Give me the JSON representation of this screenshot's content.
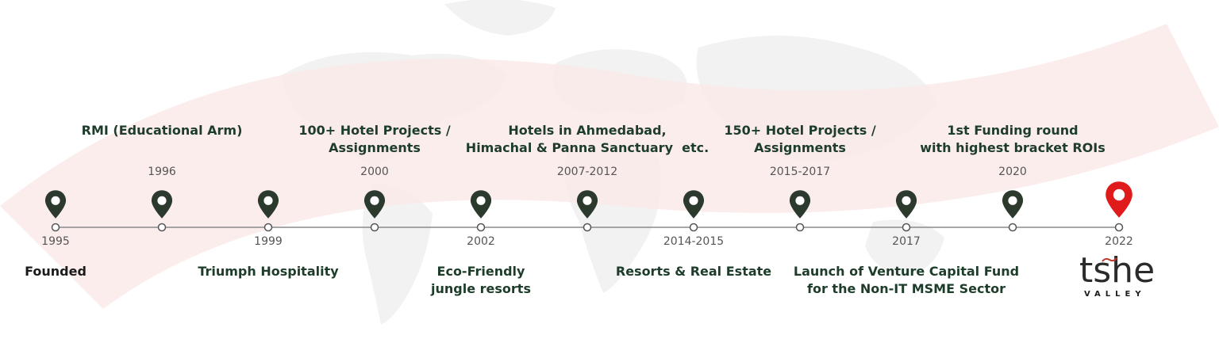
{
  "timeline": {
    "milestones": [
      {
        "year": "1995",
        "event": "Founded",
        "position": "below",
        "highlight": false
      },
      {
        "year": "1996",
        "event": "RMI (Educational Arm)",
        "position": "above",
        "highlight": false
      },
      {
        "year": "1999",
        "event": "Triumph Hospitality",
        "position": "below",
        "highlight": false
      },
      {
        "year": "2000",
        "event": "100+ Hotel Projects /\nAssignments",
        "position": "above",
        "highlight": false
      },
      {
        "year": "2002",
        "event": "Eco-Friendly\njungle resorts",
        "position": "below",
        "highlight": false
      },
      {
        "year": "2007-2012",
        "event": "Hotels in Ahmedabad,\nHimachal & Panna Sanctuary  etc.",
        "position": "above",
        "highlight": false
      },
      {
        "year": "2014-2015",
        "event": "Resorts & Real Estate",
        "position": "below",
        "highlight": false
      },
      {
        "year": "2015-2017",
        "event": "150+ Hotel Projects /\nAssignments",
        "position": "above",
        "highlight": false
      },
      {
        "year": "2017",
        "event": "Launch of Venture Capital Fund\nfor the Non-IT MSME Sector",
        "position": "below",
        "highlight": false
      },
      {
        "year": "2020",
        "event": "1st Funding round\nwith highest bracket ROIs",
        "position": "above",
        "highlight": false
      },
      {
        "year": "2022",
        "event": "",
        "position": "below",
        "highlight": true
      }
    ]
  },
  "logo": {
    "word": "tshe",
    "sub": "VALLEY"
  },
  "colors": {
    "pin": "#2b3a2c",
    "pin_highlight": "#e01b1b",
    "line": "#8a8a8a",
    "event_text": "#1d3d2a",
    "arc": "#fbe9e9"
  }
}
